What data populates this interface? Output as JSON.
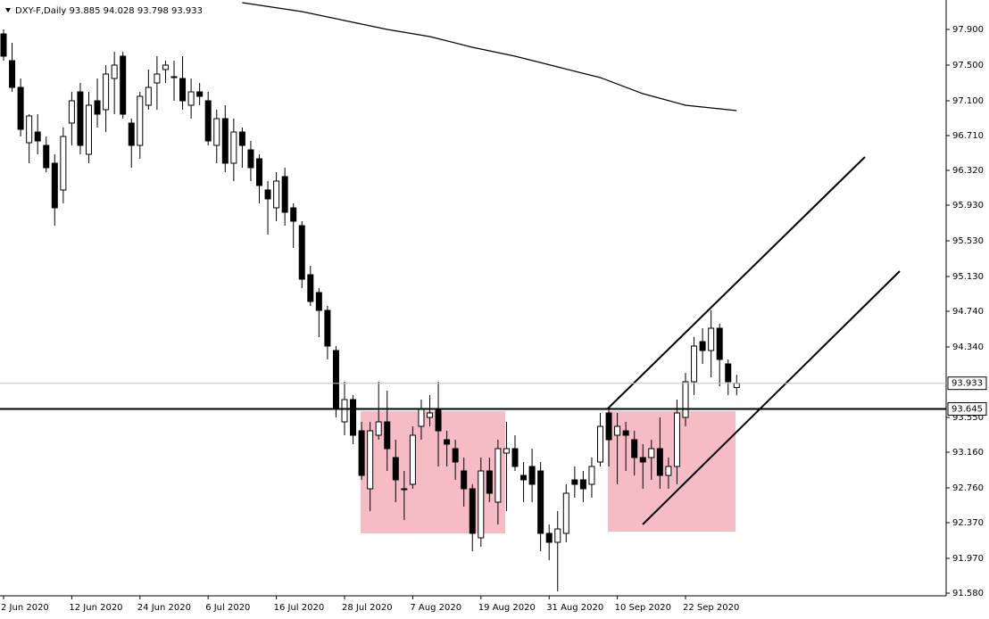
{
  "chart_data": {
    "type": "candlestick",
    "title": "DXY-F,Daily 93.885 94.028 93.798 93.933",
    "categories": [
      "2 Jun 2020",
      null,
      null,
      null,
      null,
      null,
      null,
      null,
      "12 Jun 2020",
      null,
      null,
      null,
      null,
      null,
      null,
      null,
      "24 Jun 2020",
      null,
      null,
      null,
      null,
      null,
      null,
      null,
      "6 Jul 2020",
      null,
      null,
      null,
      null,
      null,
      null,
      null,
      "16 Jul 2020",
      null,
      null,
      null,
      null,
      null,
      null,
      null,
      "28 Jul 2020",
      null,
      null,
      null,
      null,
      null,
      null,
      null,
      "7 Aug 2020",
      null,
      null,
      null,
      null,
      null,
      null,
      null,
      "19 Aug 2020",
      null,
      null,
      null,
      null,
      null,
      null,
      null,
      "31 Aug 2020",
      null,
      null,
      null,
      null,
      null,
      null,
      null,
      "10 Sep 2020",
      null,
      null,
      null,
      null,
      null,
      null,
      null,
      "22 Sep 2020",
      null,
      null,
      null,
      null,
      null,
      null
    ],
    "open": [
      97.85,
      97.55,
      97.25,
      96.63,
      96.75,
      96.6,
      96.4,
      96.1,
      96.85,
      97.2,
      96.5,
      97.1,
      97.0,
      97.35,
      97.6,
      96.85,
      96.6,
      97.05,
      97.3,
      97.45,
      97.37,
      97.35,
      97.05,
      97.2,
      97.1,
      96.6,
      96.9,
      96.4,
      96.75,
      96.55,
      96.45,
      96.1,
      95.9,
      96.25,
      95.9,
      95.7,
      95.15,
      94.95,
      94.75,
      94.3,
      93.5,
      93.75,
      93.4,
      92.75,
      93.35,
      93.5,
      93.1,
      92.75,
      92.8,
      93.45,
      93.55,
      93.65,
      93.3,
      93.2,
      92.95,
      92.75,
      92.2,
      92.95,
      92.6,
      93.15,
      93.2,
      92.9,
      93.0,
      92.95,
      92.25,
      92.15,
      92.25,
      92.85,
      92.85,
      92.8,
      93.05,
      93.6,
      93.35,
      93.4,
      93.3,
      93.1,
      93.1,
      93.2,
      92.9,
      93.0,
      93.55,
      93.95,
      94.4,
      94.3,
      94.55,
      94.15,
      93.885
    ],
    "high": [
      97.9,
      97.75,
      97.35,
      96.95,
      96.95,
      96.7,
      96.5,
      96.8,
      97.2,
      97.3,
      97.2,
      97.35,
      97.5,
      97.65,
      97.65,
      96.9,
      97.2,
      97.45,
      97.6,
      97.55,
      97.55,
      97.6,
      97.35,
      97.3,
      97.2,
      97.0,
      97.05,
      96.9,
      96.8,
      96.65,
      96.5,
      96.2,
      96.3,
      96.35,
      95.95,
      95.75,
      95.25,
      95.0,
      94.8,
      94.35,
      93.95,
      93.8,
      93.5,
      93.5,
      93.95,
      93.85,
      93.3,
      92.95,
      93.45,
      93.75,
      93.8,
      93.95,
      93.4,
      93.3,
      93.1,
      92.8,
      93.1,
      93.1,
      93.3,
      93.5,
      93.35,
      93.05,
      93.2,
      93.05,
      92.35,
      92.5,
      92.8,
      93.0,
      92.95,
      93.1,
      93.6,
      93.65,
      93.6,
      93.5,
      93.4,
      93.25,
      93.3,
      93.55,
      93.1,
      93.75,
      94.05,
      94.45,
      94.55,
      94.75,
      94.6,
      94.2,
      94.028
    ],
    "low": [
      97.55,
      97.2,
      96.7,
      96.4,
      96.5,
      96.3,
      95.7,
      95.95,
      96.6,
      96.5,
      96.4,
      96.8,
      96.75,
      96.95,
      96.9,
      96.35,
      96.45,
      97.0,
      97.0,
      97.3,
      97.1,
      97.0,
      96.9,
      97.05,
      96.6,
      96.4,
      96.3,
      96.2,
      96.35,
      96.2,
      95.95,
      95.6,
      95.75,
      95.7,
      95.45,
      95.0,
      94.8,
      94.45,
      94.2,
      93.55,
      93.35,
      93.25,
      92.85,
      92.5,
      93.3,
      92.95,
      92.6,
      92.4,
      92.75,
      93.3,
      93.45,
      93.0,
      93.0,
      92.85,
      92.55,
      92.05,
      92.1,
      92.6,
      92.35,
      92.5,
      92.95,
      92.6,
      92.6,
      92.05,
      91.95,
      91.6,
      92.15,
      92.65,
      92.6,
      92.65,
      93.0,
      93.0,
      92.8,
      92.95,
      92.9,
      92.75,
      92.85,
      92.75,
      92.75,
      92.8,
      93.45,
      93.8,
      94.15,
      94.0,
      93.9,
      93.8,
      93.798
    ],
    "close": [
      97.6,
      97.25,
      96.78,
      96.93,
      96.65,
      96.35,
      95.9,
      96.7,
      97.1,
      96.6,
      97.05,
      96.95,
      97.4,
      97.5,
      96.95,
      96.6,
      97.15,
      97.25,
      97.4,
      97.5,
      97.37,
      97.1,
      97.2,
      97.15,
      96.65,
      96.9,
      96.4,
      96.75,
      96.6,
      96.35,
      96.15,
      96.0,
      96.2,
      95.85,
      95.75,
      95.1,
      94.85,
      94.75,
      94.35,
      93.65,
      93.75,
      93.35,
      92.9,
      93.4,
      93.5,
      93.2,
      92.85,
      92.75,
      93.35,
      93.65,
      93.6,
      93.4,
      93.25,
      93.05,
      92.75,
      92.25,
      92.95,
      92.7,
      93.2,
      93.2,
      93.0,
      92.85,
      92.8,
      92.25,
      92.15,
      92.3,
      92.7,
      92.8,
      92.75,
      93.0,
      93.45,
      93.3,
      93.45,
      93.35,
      93.1,
      93.05,
      93.2,
      92.9,
      93.0,
      93.6,
      93.95,
      94.35,
      94.3,
      94.55,
      94.2,
      93.95,
      93.933
    ],
    "moving_average": {
      "x": [
        28,
        35,
        40,
        45,
        50,
        55,
        60,
        65,
        70,
        75,
        80,
        86
      ],
      "values": [
        98.2,
        98.1,
        98.0,
        97.9,
        97.82,
        97.7,
        97.6,
        97.48,
        97.36,
        97.18,
        97.05,
        96.99
      ]
    },
    "ylim": [
      91.55,
      98.23
    ],
    "yticks": [
      {
        "value": 97.9,
        "label": "97.900"
      },
      {
        "value": 97.5,
        "label": "97.500"
      },
      {
        "value": 97.1,
        "label": "97.100"
      },
      {
        "value": 96.71,
        "label": "96.710"
      },
      {
        "value": 96.32,
        "label": "96.320"
      },
      {
        "value": 95.93,
        "label": "95.930"
      },
      {
        "value": 95.53,
        "label": "95.530"
      },
      {
        "value": 95.13,
        "label": "95.130"
      },
      {
        "value": 94.74,
        "label": "94.740"
      },
      {
        "value": 94.34,
        "label": "94.340"
      },
      {
        "value": 93.55,
        "label": "93.550"
      },
      {
        "value": 93.16,
        "label": "93.160"
      },
      {
        "value": 92.76,
        "label": "92.760"
      },
      {
        "value": 92.37,
        "label": "92.370"
      },
      {
        "value": 91.97,
        "label": "91.970"
      },
      {
        "value": 91.58,
        "label": "91.580"
      }
    ],
    "price_line": {
      "value": 93.933,
      "label": "93.933"
    },
    "level_line": {
      "value": 93.645,
      "label": "93.645"
    },
    "up_color": "#ffffff",
    "down_color": "#000000"
  }
}
